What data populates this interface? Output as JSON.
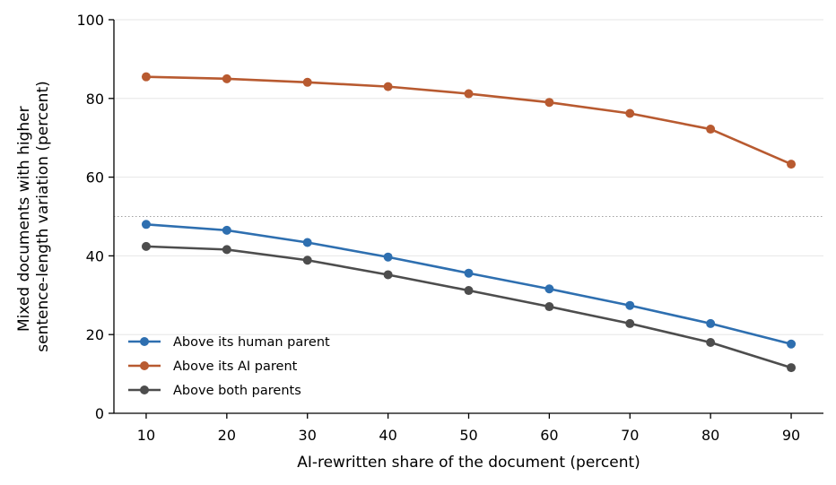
{
  "chart_data": {
    "type": "line",
    "title": "",
    "xlabel": "AI-rewritten share of the document (percent)",
    "ylabel": [
      "Mixed documents with higher",
      "sentence-length variation (percent)"
    ],
    "x": [
      10,
      20,
      30,
      40,
      50,
      60,
      70,
      80,
      90
    ],
    "xticks": [
      "10",
      "20",
      "30",
      "40",
      "50",
      "60",
      "70",
      "80",
      "90"
    ],
    "yticks": [
      "0",
      "20",
      "40",
      "60",
      "80",
      "100"
    ],
    "xlim": [
      6,
      94
    ],
    "ylim": [
      0,
      100
    ],
    "grid": "horizontal",
    "reference_line": 50,
    "legend_position": "lower-left",
    "series": [
      {
        "name": "Above its human parent",
        "color": "#2e6fb0",
        "values": [
          48.0,
          46.5,
          43.4,
          39.7,
          35.6,
          31.6,
          27.4,
          22.8,
          17.6
        ]
      },
      {
        "name": "Above its AI parent",
        "color": "#b85a30",
        "values": [
          85.5,
          85.0,
          84.1,
          83.0,
          81.2,
          79.0,
          76.2,
          72.2,
          63.3
        ]
      },
      {
        "name": "Above both parents",
        "color": "#4d4d4d",
        "values": [
          42.4,
          41.6,
          38.9,
          35.2,
          31.2,
          27.1,
          22.8,
          18.0,
          11.6
        ]
      }
    ]
  }
}
